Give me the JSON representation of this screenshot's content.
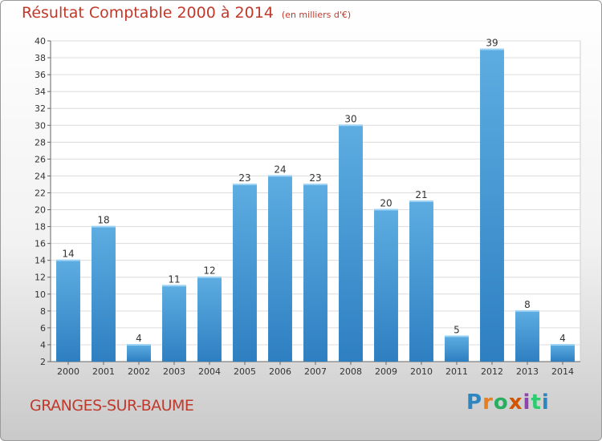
{
  "title": "Résultat Comptable 2000 à 2014",
  "unit_note": "(en milliers d'€)",
  "commune": "GRANGES-SUR-BAUME",
  "logo_text": "Proxiti",
  "colors": {
    "bar_top": "#5dade2",
    "bar_bottom": "#2e7fc1",
    "title": "#c0392b"
  },
  "chart_data": {
    "type": "bar",
    "categories": [
      "2000",
      "2001",
      "2002",
      "2003",
      "2004",
      "2005",
      "2006",
      "2007",
      "2008",
      "2009",
      "2010",
      "2011",
      "2012",
      "2013",
      "2014"
    ],
    "values": [
      14,
      18,
      4,
      11,
      12,
      23,
      24,
      23,
      30,
      20,
      21,
      5,
      39,
      8,
      4
    ],
    "ylim": [
      2,
      40
    ],
    "yticks": [
      2,
      4,
      6,
      8,
      10,
      12,
      14,
      16,
      18,
      20,
      22,
      24,
      26,
      28,
      30,
      32,
      34,
      36,
      38,
      40
    ],
    "grid": true,
    "legend": "none"
  }
}
